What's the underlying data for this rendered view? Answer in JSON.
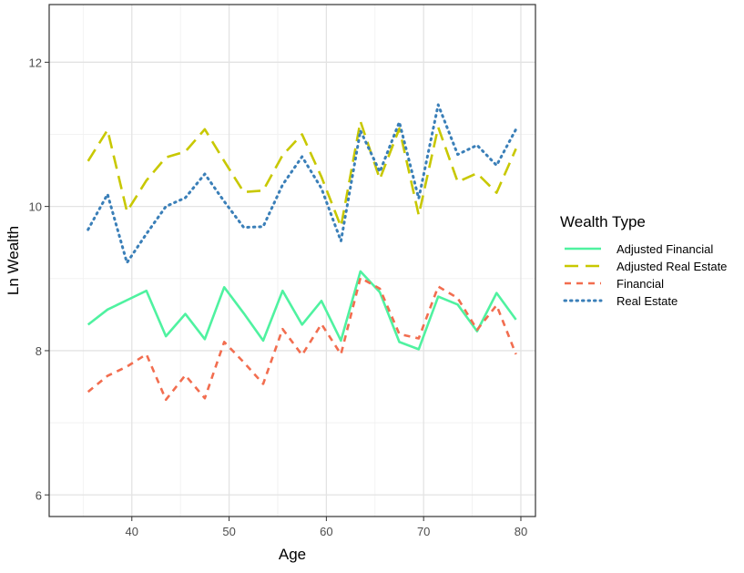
{
  "chart_data": {
    "type": "line",
    "title": "",
    "xlabel": "Age",
    "ylabel": "Ln Wealth",
    "xlim": [
      31.5,
      81.5
    ],
    "ylim": [
      5.7,
      12.8
    ],
    "x_ticks": [
      40,
      50,
      60,
      70,
      80
    ],
    "y_ticks": [
      6,
      8,
      10,
      12
    ],
    "grid": true,
    "legend": {
      "title": "Wealth Type",
      "placement": "right"
    },
    "x": [
      35.5,
      37.5,
      39.5,
      41.5,
      43.5,
      45.5,
      47.5,
      49.5,
      51.5,
      53.5,
      55.5,
      57.5,
      59.5,
      61.5,
      63.5,
      65.5,
      67.5,
      69.5,
      71.5,
      73.5,
      75.5,
      77.5,
      79.5
    ],
    "series": [
      {
        "name": "Adjusted Financial",
        "color": "#4ff2a0",
        "dash": "solid",
        "values": [
          8.36,
          8.57,
          8.7,
          8.83,
          8.2,
          8.51,
          8.16,
          8.88,
          8.52,
          8.14,
          8.83,
          8.36,
          8.69,
          8.14,
          9.1,
          8.81,
          8.12,
          8.02,
          8.75,
          8.64,
          8.27,
          8.8,
          8.43
        ]
      },
      {
        "name": "Adjusted Real Estate",
        "color": "#c8c800",
        "dash": "longdash",
        "values": [
          10.63,
          11.06,
          9.93,
          10.36,
          10.68,
          10.76,
          11.07,
          10.63,
          10.2,
          10.22,
          10.71,
          11.0,
          10.41,
          9.72,
          11.18,
          10.38,
          11.08,
          9.88,
          11.1,
          10.34,
          10.46,
          10.19,
          10.8
        ]
      },
      {
        "name": "Financial",
        "color": "#f26d4f",
        "dash": "dashed",
        "values": [
          7.43,
          7.65,
          7.78,
          7.95,
          7.32,
          7.66,
          7.34,
          8.12,
          7.84,
          7.54,
          8.3,
          7.94,
          8.37,
          7.95,
          9.01,
          8.86,
          8.23,
          8.17,
          8.89,
          8.73,
          8.29,
          8.63,
          7.95
        ]
      },
      {
        "name": "Real Estate",
        "color": "#3a7fb8",
        "dash": "dotted",
        "values": [
          9.68,
          10.17,
          9.22,
          9.62,
          10.0,
          10.12,
          10.45,
          10.07,
          9.71,
          9.72,
          10.3,
          10.69,
          10.25,
          9.52,
          11.05,
          10.48,
          11.17,
          10.11,
          11.41,
          10.72,
          10.85,
          10.57,
          11.07
        ]
      }
    ]
  }
}
